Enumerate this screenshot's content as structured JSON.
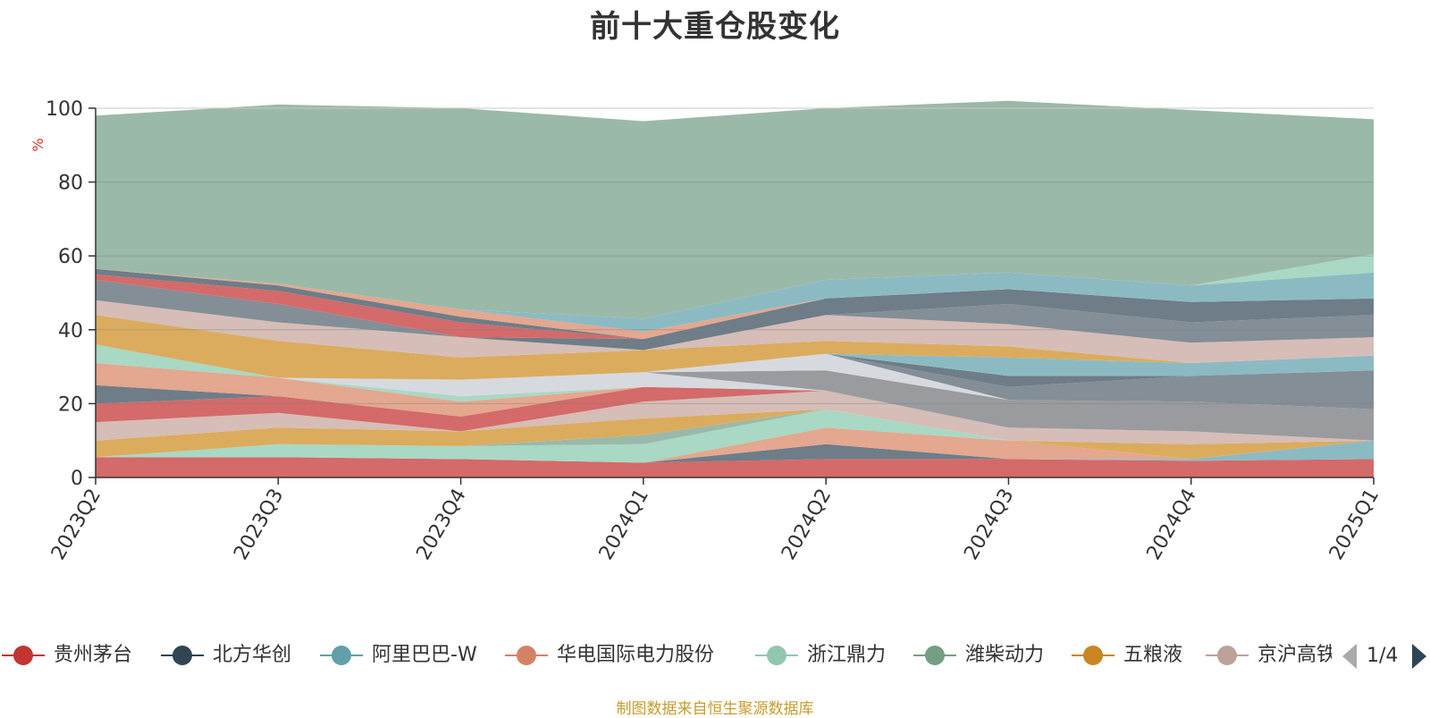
{
  "chart_data": {
    "type": "area",
    "title": "前十大重仓股变化",
    "ylabel": "%",
    "ylim": [
      0,
      100
    ],
    "yticks": [
      0,
      20,
      40,
      60,
      80,
      100
    ],
    "x": [
      "2023Q2",
      "2023Q3",
      "2023Q4",
      "2024Q1",
      "2024Q2",
      "2024Q3",
      "2024Q4",
      "2025Q1"
    ],
    "stacked": true,
    "grid": true,
    "legend_position": "bottom",
    "series": [
      {
        "name": "贵州茅台",
        "color": "#d46a6a",
        "values": [
          5.5,
          5.5,
          5.0,
          4.0,
          5.0,
          5.0,
          4.5,
          5.0
        ]
      },
      {
        "name": "北方华创",
        "color": "#6e7d88",
        "values": [
          0.0,
          0.0,
          0.0,
          0.0,
          4.0,
          0.0,
          0.0,
          0.0
        ]
      },
      {
        "name": "阿里巴巴-W",
        "color": "#8cbac3",
        "values": [
          0.0,
          0.0,
          0.0,
          0.0,
          0.0,
          0.0,
          0.5,
          5.0
        ]
      },
      {
        "name": "华电国际电力股份",
        "color": "#e4a78f",
        "values": [
          0.0,
          0.0,
          0.0,
          0.0,
          4.5,
          5.0,
          0.0,
          0.0
        ]
      },
      {
        "name": "浙江鼎力",
        "color": "#a9d8c4",
        "values": [
          0.0,
          3.5,
          3.5,
          5.0,
          5.0,
          0.0,
          0.0,
          0.0
        ]
      },
      {
        "name": "潍柴动力",
        "color": "#9bb9a8",
        "values": [
          0.0,
          0.0,
          0.0,
          2.5,
          0.0,
          0.0,
          0.0,
          0.0
        ]
      },
      {
        "name": "五粮液",
        "color": "#dbac5e",
        "values": [
          4.5,
          4.5,
          4.0,
          4.5,
          0.0,
          0.0,
          4.0,
          0.0
        ]
      },
      {
        "name": "京沪高铁",
        "color": "#d6bdb7",
        "values": [
          5.0,
          4.0,
          0.0,
          4.5,
          5.0,
          3.5,
          3.5,
          0.0
        ]
      }
    ],
    "other_bands": [
      {
        "color": "#d46a6a",
        "values": [
          5.0,
          4.5,
          4.0,
          4.0,
          0.0,
          0.0,
          0.0,
          0.0
        ]
      },
      {
        "color": "#6e7d88",
        "values": [
          5.0,
          0.0,
          0.0,
          0.0,
          0.0,
          0.0,
          0.0,
          0.0
        ]
      },
      {
        "color": "#e4a78f",
        "values": [
          6.0,
          5.0,
          4.0,
          0.0,
          0.0,
          0.0,
          0.0,
          0.0
        ]
      },
      {
        "color": "#a9d8c4",
        "values": [
          5.0,
          0.0,
          1.5,
          0.0,
          0.0,
          0.0,
          0.0,
          0.0
        ]
      },
      {
        "color": "#d6dadf",
        "values": [
          0.0,
          0.0,
          4.5,
          4.0,
          0.0,
          0.0,
          0.0,
          0.0
        ]
      },
      {
        "color": "#999b9e",
        "values": [
          0.0,
          0.0,
          0.0,
          0.0,
          5.5,
          7.5,
          8.0,
          8.5
        ]
      },
      {
        "color": "#d6dadf",
        "values": [
          0.0,
          0.0,
          0.0,
          0.0,
          4.5,
          0.0,
          0.0,
          0.0
        ]
      },
      {
        "color": "#848e96",
        "values": [
          0.0,
          0.0,
          0.0,
          0.0,
          0.0,
          3.5,
          7.0,
          10.5
        ]
      },
      {
        "color": "#6e7d88",
        "values": [
          0.0,
          0.0,
          0.0,
          0.0,
          0.0,
          3.0,
          0.0,
          0.0
        ]
      },
      {
        "color": "#8cbac3",
        "values": [
          0.0,
          0.0,
          0.0,
          0.0,
          0.0,
          5.0,
          3.5,
          4.0
        ]
      },
      {
        "color": "#dbac5e",
        "values": [
          8.0,
          10.0,
          6.0,
          6.0,
          3.5,
          3.0,
          0.0,
          0.0
        ]
      },
      {
        "color": "#d6bdb7",
        "values": [
          4.0,
          5.0,
          5.5,
          0.0,
          7.0,
          6.0,
          5.5,
          5.0
        ]
      },
      {
        "color": "#848e96",
        "values": [
          5.5,
          5.0,
          0.0,
          0.0,
          0.0,
          5.5,
          5.5,
          6.0
        ]
      },
      {
        "color": "#6e7d88",
        "values": [
          0.0,
          0.0,
          0.0,
          3.0,
          4.5,
          4.0,
          5.5,
          4.5
        ]
      },
      {
        "color": "#d46a6a",
        "values": [
          1.5,
          3.5,
          4.0,
          0.0,
          0.0,
          0.0,
          0.0,
          0.0
        ]
      },
      {
        "color": "#6e7d88",
        "values": [
          1.5,
          1.5,
          1.5,
          0.0,
          0.0,
          0.0,
          0.0,
          0.0
        ]
      },
      {
        "color": "#e4a78f",
        "values": [
          0.0,
          0.5,
          2.0,
          2.0,
          0.0,
          0.0,
          0.0,
          0.0
        ]
      },
      {
        "color": "#8cbac3",
        "values": [
          0.0,
          0.0,
          0.0,
          3.5,
          5.0,
          4.5,
          4.5,
          7.0
        ]
      },
      {
        "color": "#a9d8c4",
        "values": [
          0.0,
          0.0,
          0.0,
          0.0,
          0.0,
          0.0,
          0.0,
          5.0
        ]
      },
      {
        "color": "#9bb9a8",
        "values": [
          41.5,
          48.5,
          54.5,
          53.5,
          46.5,
          46.5,
          47.5,
          36.5
        ]
      }
    ]
  },
  "legend": {
    "items": [
      {
        "label": "贵州茅台",
        "color": "#c23531"
      },
      {
        "label": "北方华创",
        "color": "#2f4554"
      },
      {
        "label": "阿里巴巴-W",
        "color": "#61a0a8"
      },
      {
        "label": "华电国际电力股份",
        "color": "#d48265"
      },
      {
        "label": "浙江鼎力",
        "color": "#91c7ae"
      },
      {
        "label": "潍柴动力",
        "color": "#749f83"
      },
      {
        "label": "五粮液",
        "color": "#ca8622"
      },
      {
        "label": "京沪高铁",
        "color": "#bda29a"
      }
    ],
    "page": "1/4"
  },
  "source_note": "制图数据来自恒生聚源数据库"
}
